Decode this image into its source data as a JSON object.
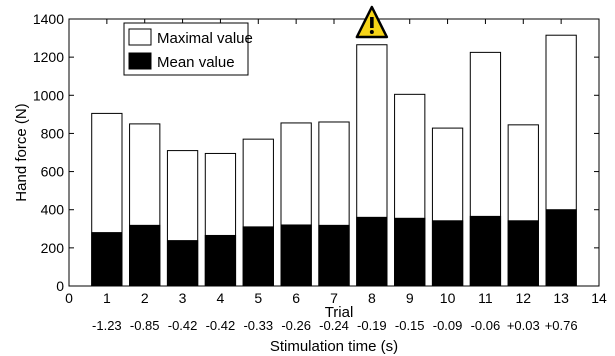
{
  "chart_data": {
    "type": "bar",
    "ylabel": "Hand force (N)",
    "xlabel": "Trial",
    "xlabel2": "Stimulation time (s)",
    "xlim": [
      0,
      14
    ],
    "ylim": [
      0,
      1400
    ],
    "x_ticks": [
      "0",
      "1",
      "2",
      "3",
      "4",
      "5",
      "6",
      "7",
      "8",
      "9",
      "10",
      "11",
      "12",
      "13",
      "14"
    ],
    "y_ticks": [
      "0",
      "200",
      "400",
      "600",
      "800",
      "1000",
      "1200",
      "1400"
    ],
    "trials": [
      1,
      2,
      3,
      4,
      5,
      6,
      7,
      8,
      9,
      10,
      11,
      12,
      13
    ],
    "stimulation_times": [
      "-1.23",
      "-0.85",
      "-0.42",
      "-0.42",
      "-0.33",
      "-0.26",
      "-0.24",
      "-0.19",
      "-0.15",
      "-0.09",
      "-0.06",
      "+0.03",
      "+0.76"
    ],
    "series": [
      {
        "name": "Maximal value",
        "color": "#ffffff",
        "values": [
          905,
          850,
          710,
          695,
          770,
          855,
          860,
          1265,
          1005,
          828,
          1225,
          845,
          1315
        ]
      },
      {
        "name": "Mean value",
        "color": "#000000",
        "values": [
          280,
          318,
          238,
          265,
          310,
          320,
          318,
          360,
          355,
          342,
          365,
          342,
          400
        ]
      }
    ],
    "legend": {
      "position": "top-left",
      "entries": [
        "Maximal value",
        "Mean value"
      ]
    },
    "annotations": [
      {
        "type": "warning-icon",
        "trial": 8
      }
    ],
    "grid": false
  }
}
